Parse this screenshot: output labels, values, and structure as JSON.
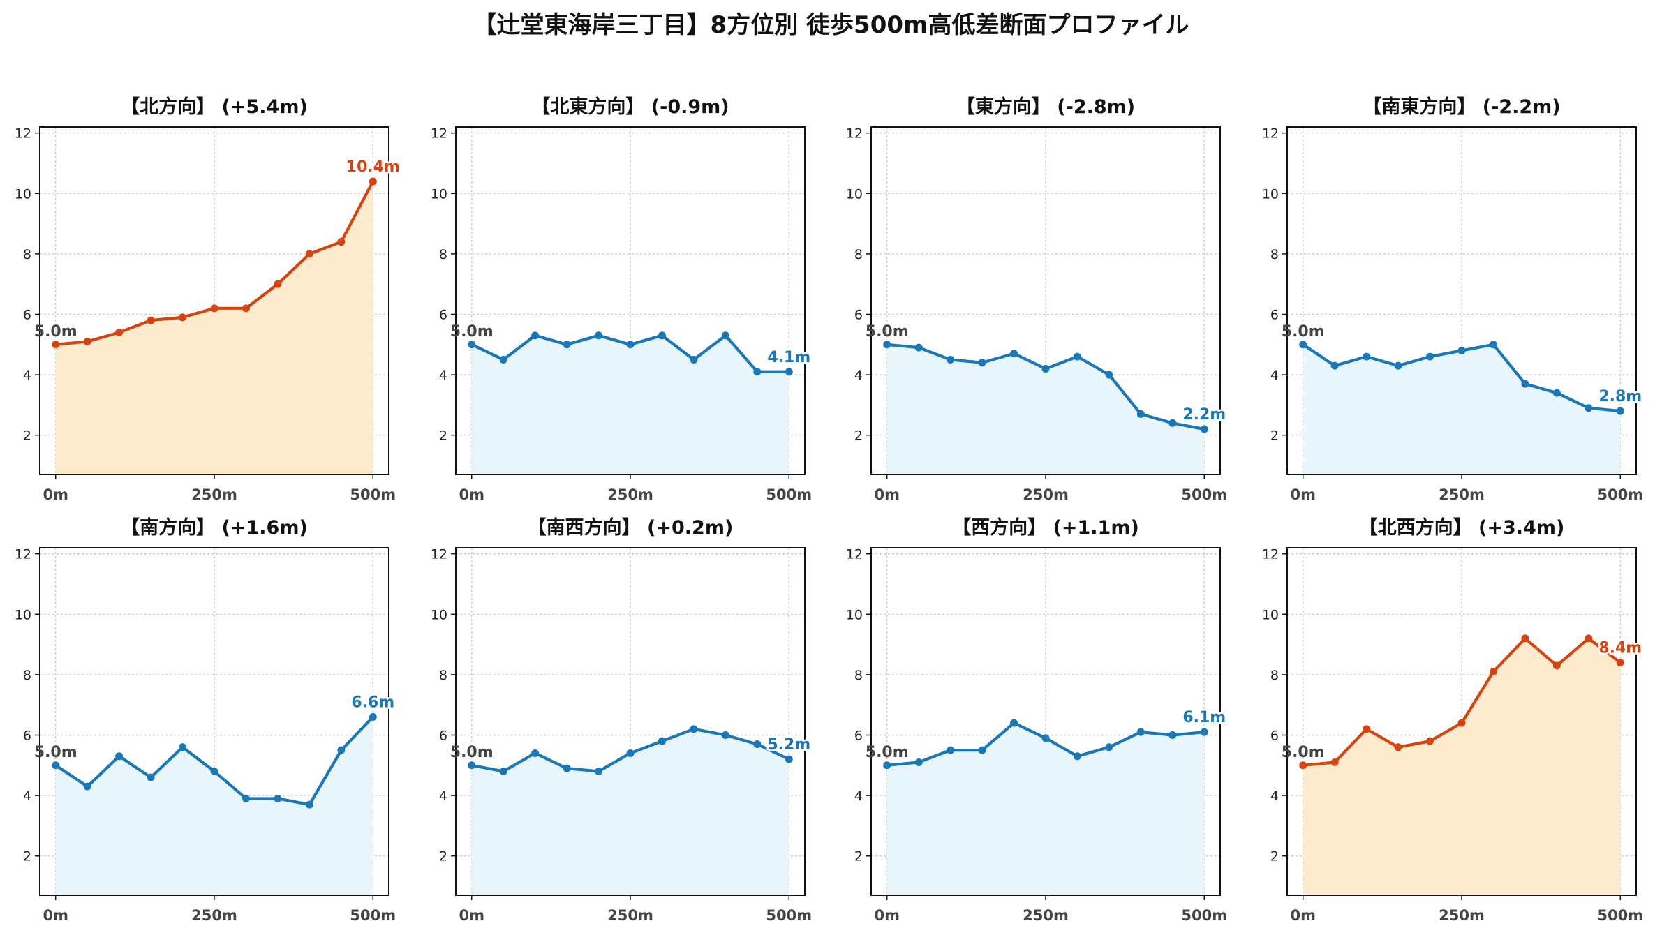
{
  "title": "【辻堂東海岸三丁目】8方位別 徒歩500m高低差断面プロファイル",
  "colors": {
    "up_line": "#d64510",
    "up_fill": "#fdebce",
    "down_line": "#1a78b8",
    "down_fill": "#e8f5fb",
    "start_label": "#444444"
  },
  "chart_data": [
    {
      "type": "area",
      "title": "【北方向】 (+5.4m)",
      "trend": "up",
      "x": [
        0,
        50,
        100,
        150,
        200,
        250,
        300,
        350,
        400,
        450,
        500
      ],
      "values": [
        5.0,
        5.1,
        5.4,
        5.8,
        5.9,
        6.2,
        6.2,
        7.0,
        8.0,
        8.4,
        10.4
      ],
      "start_label": "5.0m",
      "end_label": "10.4m",
      "xticks": [
        "0m",
        "250m",
        "500m"
      ],
      "yticks": [
        "2",
        "4",
        "6",
        "8",
        "10",
        "12"
      ],
      "xlim": [
        -25,
        525
      ],
      "ylim": [
        0.7,
        12.2
      ],
      "grid": true
    },
    {
      "type": "area",
      "title": "【北東方向】 (-0.9m)",
      "trend": "down",
      "x": [
        0,
        50,
        100,
        150,
        200,
        250,
        300,
        350,
        400,
        450,
        500
      ],
      "values": [
        5.0,
        4.5,
        5.3,
        5.0,
        5.3,
        5.0,
        5.3,
        4.5,
        5.3,
        4.1,
        4.1
      ],
      "start_label": "5.0m",
      "end_label": "4.1m",
      "xticks": [
        "0m",
        "250m",
        "500m"
      ],
      "yticks": [
        "2",
        "4",
        "6",
        "8",
        "10",
        "12"
      ],
      "xlim": [
        -25,
        525
      ],
      "ylim": [
        0.7,
        12.2
      ],
      "grid": true
    },
    {
      "type": "area",
      "title": "【東方向】 (-2.8m)",
      "trend": "down",
      "x": [
        0,
        50,
        100,
        150,
        200,
        250,
        300,
        350,
        400,
        450,
        500
      ],
      "values": [
        5.0,
        4.9,
        4.5,
        4.4,
        4.7,
        4.2,
        4.6,
        4.0,
        2.7,
        2.4,
        2.2
      ],
      "start_label": "5.0m",
      "end_label": "2.2m",
      "xticks": [
        "0m",
        "250m",
        "500m"
      ],
      "yticks": [
        "2",
        "4",
        "6",
        "8",
        "10",
        "12"
      ],
      "xlim": [
        -25,
        525
      ],
      "ylim": [
        0.7,
        12.2
      ],
      "grid": true
    },
    {
      "type": "area",
      "title": "【南東方向】 (-2.2m)",
      "trend": "down",
      "x": [
        0,
        50,
        100,
        150,
        200,
        250,
        300,
        350,
        400,
        450,
        500
      ],
      "values": [
        5.0,
        4.3,
        4.6,
        4.3,
        4.6,
        4.8,
        5.0,
        3.7,
        3.4,
        2.9,
        2.8
      ],
      "start_label": "5.0m",
      "end_label": "2.8m",
      "xticks": [
        "0m",
        "250m",
        "500m"
      ],
      "yticks": [
        "2",
        "4",
        "6",
        "8",
        "10",
        "12"
      ],
      "xlim": [
        -25,
        525
      ],
      "ylim": [
        0.7,
        12.2
      ],
      "grid": true
    },
    {
      "type": "area",
      "title": "【南方向】 (+1.6m)",
      "trend": "down",
      "x": [
        0,
        50,
        100,
        150,
        200,
        250,
        300,
        350,
        400,
        450,
        500
      ],
      "values": [
        5.0,
        4.3,
        5.3,
        4.6,
        5.6,
        4.8,
        3.9,
        3.9,
        3.7,
        5.5,
        6.6
      ],
      "start_label": "5.0m",
      "end_label": "6.6m",
      "xticks": [
        "0m",
        "250m",
        "500m"
      ],
      "yticks": [
        "2",
        "4",
        "6",
        "8",
        "10",
        "12"
      ],
      "xlim": [
        -25,
        525
      ],
      "ylim": [
        0.7,
        12.2
      ],
      "grid": true
    },
    {
      "type": "area",
      "title": "【南西方向】 (+0.2m)",
      "trend": "down",
      "x": [
        0,
        50,
        100,
        150,
        200,
        250,
        300,
        350,
        400,
        450,
        500
      ],
      "values": [
        5.0,
        4.8,
        5.4,
        4.9,
        4.8,
        5.4,
        5.8,
        6.2,
        6.0,
        5.7,
        5.2
      ],
      "start_label": "5.0m",
      "end_label": "5.2m",
      "xticks": [
        "0m",
        "250m",
        "500m"
      ],
      "yticks": [
        "2",
        "4",
        "6",
        "8",
        "10",
        "12"
      ],
      "xlim": [
        -25,
        525
      ],
      "ylim": [
        0.7,
        12.2
      ],
      "grid": true
    },
    {
      "type": "area",
      "title": "【西方向】 (+1.1m)",
      "trend": "down",
      "x": [
        0,
        50,
        100,
        150,
        200,
        250,
        300,
        350,
        400,
        450,
        500
      ],
      "values": [
        5.0,
        5.1,
        5.5,
        5.5,
        6.4,
        5.9,
        5.3,
        5.6,
        6.1,
        6.0,
        6.1
      ],
      "start_label": "5.0m",
      "end_label": "6.1m",
      "xticks": [
        "0m",
        "250m",
        "500m"
      ],
      "yticks": [
        "2",
        "4",
        "6",
        "8",
        "10",
        "12"
      ],
      "xlim": [
        -25,
        525
      ],
      "ylim": [
        0.7,
        12.2
      ],
      "grid": true
    },
    {
      "type": "area",
      "title": "【北西方向】 (+3.4m)",
      "trend": "up",
      "x": [
        0,
        50,
        100,
        150,
        200,
        250,
        300,
        350,
        400,
        450,
        500
      ],
      "values": [
        5.0,
        5.1,
        6.2,
        5.6,
        5.8,
        6.4,
        8.1,
        9.2,
        8.3,
        9.2,
        8.4
      ],
      "start_label": "5.0m",
      "end_label": "8.4m",
      "xticks": [
        "0m",
        "250m",
        "500m"
      ],
      "yticks": [
        "2",
        "4",
        "6",
        "8",
        "10",
        "12"
      ],
      "xlim": [
        -25,
        525
      ],
      "ylim": [
        0.7,
        12.2
      ],
      "grid": true
    }
  ]
}
